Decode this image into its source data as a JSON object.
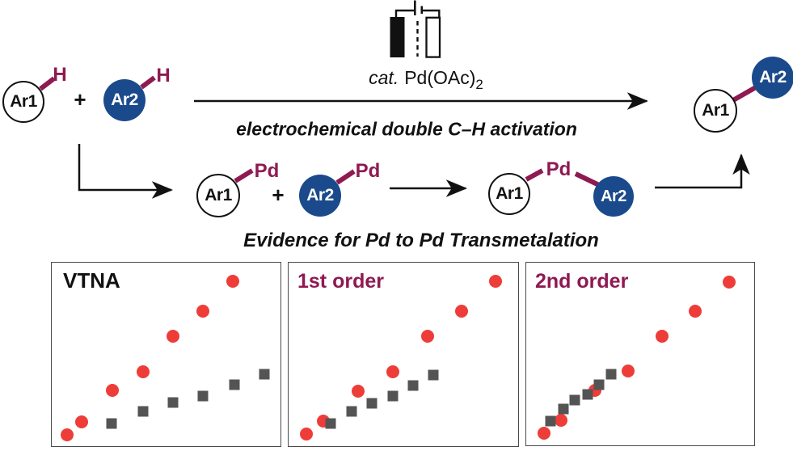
{
  "labels": {
    "ar1": "Ar1",
    "ar2": "Ar2",
    "pd": "Pd",
    "h": "H",
    "plus": "+"
  },
  "scheme": {
    "catalyst_prefix": "cat.",
    "catalyst_name": "Pd(OAc)",
    "catalyst_subscript": "2",
    "reaction_caption": "electrochemical double C–H activation",
    "evidence_caption": "Evidence for Pd to Pd Transmetalation"
  },
  "icons": {
    "electrochemical_cell": "divided electrochemical cell with filled anode, open cathode, dashed separator and battery leads"
  },
  "colors": {
    "bond_maroon": "#8e1a52",
    "aryl_blue": "#1a4a8b",
    "scatter_red": "#ee3d38",
    "scatter_gray": "#545454",
    "ink_black": "#111111",
    "panel_border": "#4a4a4a"
  },
  "chart_data": [
    {
      "type": "scatter",
      "title": "VTNA",
      "title_color": "#111111",
      "xlabel": "",
      "ylabel": "",
      "coords_note": "percent of panel area, origin bottom-left; schematic plot with no ticks or axis labels",
      "series": [
        {
          "name": "red-circles",
          "marker": "circle",
          "color": "#ee3d38",
          "points": [
            [
              6.6,
              6.1
            ],
            [
              13.0,
              13.4
            ],
            [
              26.5,
              30.4
            ],
            [
              39.8,
              40.7
            ],
            [
              52.9,
              59.9
            ],
            [
              66.1,
              73.6
            ],
            [
              79.3,
              89.7
            ]
          ]
        },
        {
          "name": "gray-squares",
          "marker": "square",
          "color": "#545454",
          "points": [
            [
              26.2,
              12.3
            ],
            [
              39.8,
              18.9
            ],
            [
              52.9,
              24.0
            ],
            [
              66.2,
              27.1
            ],
            [
              79.7,
              33.3
            ],
            [
              92.8,
              39.2
            ]
          ]
        }
      ]
    },
    {
      "type": "scatter",
      "title": "1st order",
      "title_color": "#8e1a52",
      "xlabel": "",
      "ylabel": "",
      "coords_note": "percent of panel area, origin bottom-left; schematic plot with no ticks or axis labels",
      "series": [
        {
          "name": "red-circles",
          "marker": "circle",
          "color": "#ee3d38",
          "points": [
            [
              7.8,
              6.5
            ],
            [
              15.2,
              13.7
            ],
            [
              30.4,
              30.0
            ],
            [
              45.3,
              40.7
            ],
            [
              60.5,
              59.9
            ],
            [
              75.3,
              73.6
            ],
            [
              90.3,
              89.7
            ]
          ]
        },
        {
          "name": "gray-squares",
          "marker": "square",
          "color": "#545454",
          "points": [
            [
              18.4,
              12.3
            ],
            [
              27.5,
              18.9
            ],
            [
              36.2,
              23.5
            ],
            [
              45.3,
              27.1
            ],
            [
              54.4,
              33.1
            ],
            [
              63.2,
              38.9
            ]
          ]
        }
      ]
    },
    {
      "type": "scatter",
      "title": "2nd order",
      "title_color": "#8e1a52",
      "xlabel": "",
      "ylabel": "",
      "coords_note": "percent of panel area, origin bottom-left; schematic plot with no ticks or axis labels",
      "series": [
        {
          "name": "red-circles",
          "marker": "circle",
          "color": "#ee3d38",
          "points": [
            [
              7.7,
              6.7
            ],
            [
              15.3,
              13.8
            ],
            [
              30.3,
              30.0
            ],
            [
              44.8,
              40.5
            ],
            [
              59.5,
              59.6
            ],
            [
              74.2,
              73.4
            ],
            [
              88.9,
              89.4
            ]
          ]
        },
        {
          "name": "gray-squares",
          "marker": "square",
          "color": "#545454",
          "points": [
            [
              10.8,
              13.1
            ],
            [
              16.3,
              20.0
            ],
            [
              21.4,
              24.8
            ],
            [
              26.9,
              27.8
            ],
            [
              32.0,
              33.2
            ],
            [
              37.3,
              39.1
            ]
          ]
        }
      ]
    }
  ]
}
